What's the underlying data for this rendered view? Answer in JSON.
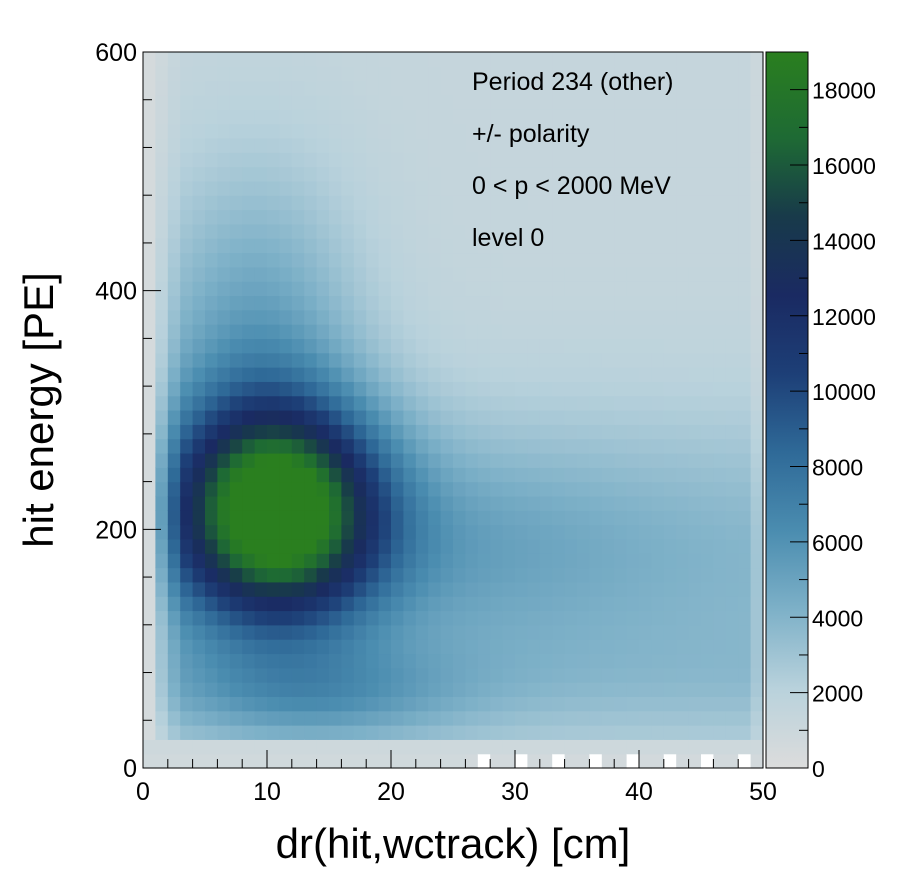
{
  "chart_data": {
    "type": "heatmap",
    "title": "",
    "xlabel": "dr(hit,wctrack) [cm]",
    "ylabel": "hit energy [PE]",
    "xlim": [
      0,
      50
    ],
    "ylim": [
      0,
      600
    ],
    "x_ticks": [
      "0",
      "10",
      "20",
      "30",
      "40",
      "50"
    ],
    "y_ticks": [
      "0",
      "200",
      "400",
      "600"
    ],
    "annotations": [
      "Period 234 (other)",
      "+/- polarity",
      "0 < p < 2000 MeV",
      "level 0"
    ],
    "colorbar": {
      "range": [
        0,
        19000
      ],
      "ticks": [
        "0",
        "2000",
        "4000",
        "6000",
        "8000",
        "10000",
        "12000",
        "14000",
        "16000",
        "18000"
      ],
      "colors": [
        "#dcdcdc",
        "#b9d2dc",
        "#7eb1c8",
        "#4b8db0",
        "#2f6a98",
        "#1d3f77",
        "#1a2a62",
        "#183a4a",
        "#1e6a34",
        "#2a7f1f"
      ]
    },
    "bins": {
      "x_bin_width": 1,
      "y_bin_width": 12
    },
    "peak": {
      "x": 11,
      "y": 215,
      "value": 18500
    }
  }
}
